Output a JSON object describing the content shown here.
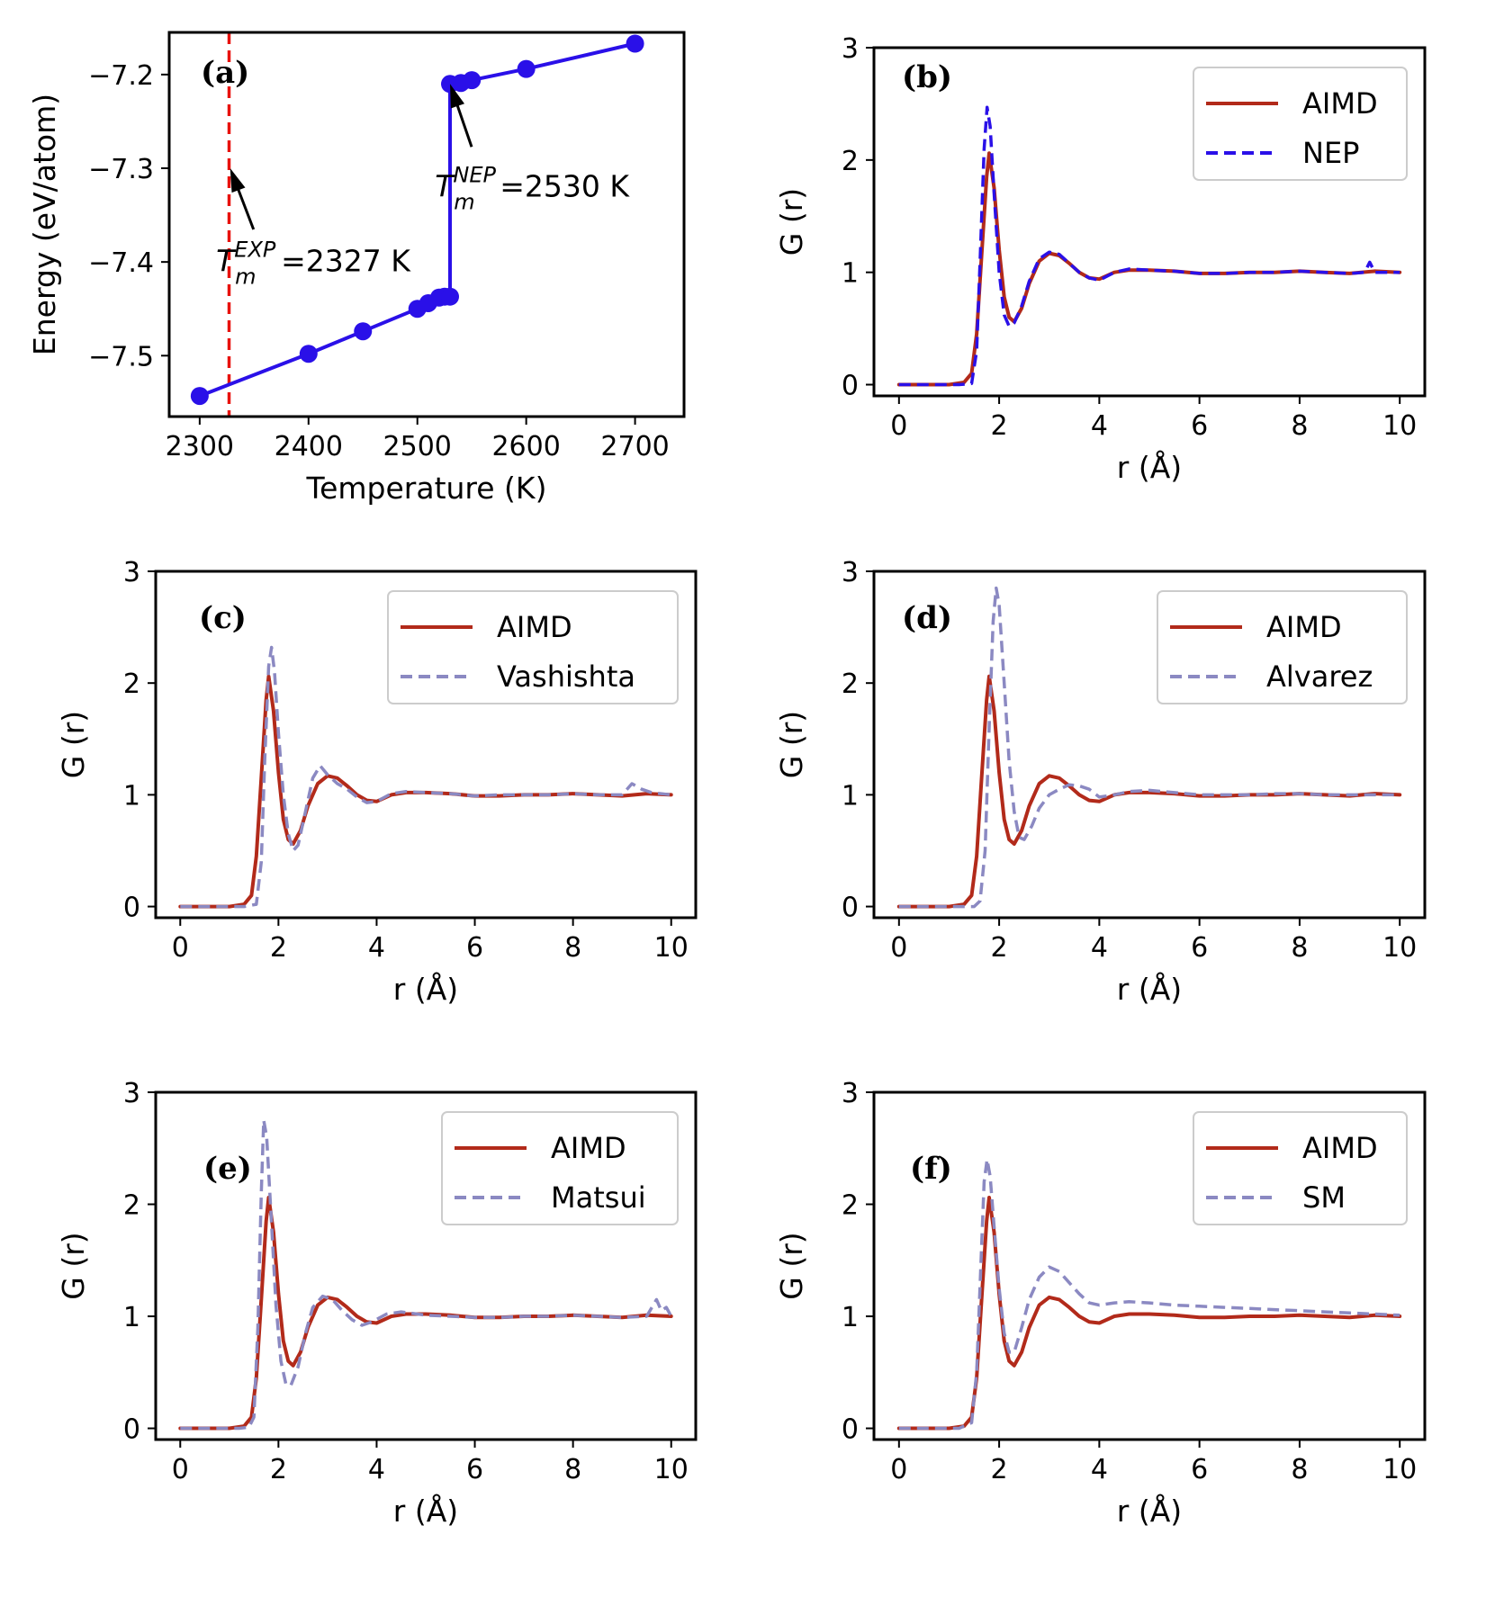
{
  "colors": {
    "aimd": "#b22a1a",
    "nep": "#2a10e8",
    "classical": "#8b89c2",
    "energy": "#2a10e8",
    "exp_line": "#e8120e"
  },
  "chart_data": [
    {
      "id": "a",
      "type": "line",
      "panel_label": "(a)",
      "xlabel": "Temperature (K)",
      "ylabel": "Energy (eV/atom)",
      "xlim": [
        2272,
        2745
      ],
      "ylim": [
        -7.565,
        -7.155
      ],
      "xticks": [
        2300,
        2400,
        2500,
        2600,
        2700
      ],
      "yticks": [
        -7.2,
        -7.3,
        -7.4,
        -7.5
      ],
      "xtick_labels": [
        "2300",
        "2400",
        "2500",
        "2600",
        "2700"
      ],
      "ytick_labels": [
        "−7.2",
        "−7.3",
        "−7.4",
        "−7.5"
      ],
      "series": [
        {
          "name": "Energy",
          "x": [
            2300,
            2400,
            2450,
            2500,
            2510,
            2520,
            2525,
            2530,
            2530,
            2540,
            2550,
            2600,
            2700
          ],
          "y": [
            -7.543,
            -7.498,
            -7.474,
            -7.45,
            -7.444,
            -7.438,
            -7.437,
            -7.437,
            -7.21,
            -7.209,
            -7.206,
            -7.194,
            -7.167
          ]
        }
      ],
      "vline_x": 2327,
      "annotations": [
        {
          "id": "exp",
          "prefix": "T",
          "sub": "m",
          "sup": "EXP",
          "rest": "=2327 K",
          "arrow_tip": [
            2328,
            -7.3
          ],
          "text_xy": [
            2330,
            -7.41
          ]
        },
        {
          "id": "nep",
          "prefix": "T",
          "sub": "m",
          "sup": "NEP",
          "rest": "=2530 K",
          "arrow_tip": [
            2530,
            -7.21
          ],
          "text_xy": [
            2531,
            -7.33
          ]
        }
      ]
    },
    {
      "id": "b",
      "type": "line",
      "panel_label": "(b)",
      "xlabel": "r (Å)",
      "ylabel": "G (r)",
      "xlim": [
        -0.5,
        10.5
      ],
      "ylim": [
        -0.1,
        3.0
      ],
      "xticks": [
        0,
        2,
        4,
        6,
        8,
        10
      ],
      "yticks": [
        0,
        1,
        2,
        3
      ],
      "xtick_labels": [
        "0",
        "2",
        "4",
        "6",
        "8",
        "10"
      ],
      "ytick_labels": [
        "0",
        "1",
        "2",
        "3"
      ],
      "legend": [
        "AIMD",
        "NEP"
      ],
      "series": [
        {
          "name": "AIMD",
          "style": "solid",
          "x": [
            0,
            1.0,
            1.3,
            1.45,
            1.55,
            1.65,
            1.75,
            1.8,
            1.9,
            2.0,
            2.1,
            2.2,
            2.3,
            2.45,
            2.6,
            2.8,
            3.0,
            3.2,
            3.4,
            3.6,
            3.8,
            4.0,
            4.3,
            4.6,
            5.0,
            5.5,
            6.0,
            6.5,
            7.0,
            7.5,
            8.0,
            8.5,
            9.0,
            9.5,
            10.0
          ],
          "values": [
            0,
            0,
            0.02,
            0.1,
            0.45,
            1.15,
            1.85,
            2.06,
            1.75,
            1.2,
            0.78,
            0.6,
            0.56,
            0.68,
            0.9,
            1.1,
            1.17,
            1.15,
            1.08,
            1.0,
            0.95,
            0.94,
            1.0,
            1.02,
            1.02,
            1.01,
            0.99,
            0.99,
            1.0,
            1.0,
            1.01,
            1.0,
            0.99,
            1.01,
            1.0
          ]
        },
        {
          "name": "NEP",
          "style": "dashed",
          "x": [
            0,
            1.2,
            1.45,
            1.55,
            1.62,
            1.7,
            1.76,
            1.82,
            1.9,
            2.0,
            2.1,
            2.2,
            2.3,
            2.45,
            2.6,
            2.8,
            3.0,
            3.2,
            3.4,
            3.6,
            3.8,
            4.0,
            4.3,
            4.6,
            5.0,
            5.5,
            6.0,
            6.5,
            7.0,
            7.5,
            8.0,
            8.5,
            9.0,
            9.3,
            9.4,
            9.5,
            10.0
          ],
          "values": [
            0,
            0,
            0.01,
            0.3,
            1.1,
            2.1,
            2.47,
            2.3,
            1.7,
            1.0,
            0.62,
            0.52,
            0.55,
            0.7,
            0.92,
            1.12,
            1.18,
            1.16,
            1.08,
            1.0,
            0.95,
            0.93,
            1.0,
            1.03,
            1.02,
            1.01,
            0.99,
            0.99,
            1.0,
            1.0,
            1.01,
            1.0,
            0.99,
            1.0,
            1.09,
            1.0,
            1.0
          ]
        }
      ]
    },
    {
      "id": "c",
      "type": "line",
      "panel_label": "(c)",
      "xlabel": "r (Å)",
      "ylabel": "G (r)",
      "xlim": [
        -0.5,
        10.5
      ],
      "ylim": [
        -0.1,
        3.0
      ],
      "xticks": [
        0,
        2,
        4,
        6,
        8,
        10
      ],
      "yticks": [
        0,
        1,
        2,
        3
      ],
      "xtick_labels": [
        "0",
        "2",
        "4",
        "6",
        "8",
        "10"
      ],
      "ytick_labels": [
        "0",
        "1",
        "2",
        "3"
      ],
      "legend": [
        "AIMD",
        "Vashishta"
      ],
      "series": [
        {
          "name": "AIMD",
          "style": "solid",
          "x": [
            0,
            1.0,
            1.3,
            1.45,
            1.55,
            1.65,
            1.75,
            1.8,
            1.9,
            2.0,
            2.1,
            2.2,
            2.3,
            2.45,
            2.6,
            2.8,
            3.0,
            3.2,
            3.4,
            3.6,
            3.8,
            4.0,
            4.3,
            4.6,
            5.0,
            5.5,
            6.0,
            6.5,
            7.0,
            7.5,
            8.0,
            8.5,
            9.0,
            9.5,
            10.0
          ],
          "values": [
            0,
            0,
            0.02,
            0.1,
            0.45,
            1.15,
            1.85,
            2.06,
            1.75,
            1.2,
            0.78,
            0.6,
            0.56,
            0.68,
            0.9,
            1.1,
            1.17,
            1.15,
            1.08,
            1.0,
            0.95,
            0.94,
            1.0,
            1.02,
            1.02,
            1.01,
            0.99,
            0.99,
            1.0,
            1.0,
            1.01,
            1.0,
            0.99,
            1.01,
            1.0
          ]
        },
        {
          "name": "Vashishta",
          "style": "dashed",
          "x": [
            0,
            1.3,
            1.55,
            1.65,
            1.72,
            1.8,
            1.86,
            1.92,
            2.0,
            2.1,
            2.2,
            2.3,
            2.4,
            2.55,
            2.7,
            2.85,
            3.0,
            3.2,
            3.4,
            3.6,
            3.8,
            4.0,
            4.3,
            4.6,
            5.0,
            5.5,
            6.0,
            6.5,
            7.0,
            7.5,
            8.0,
            8.5,
            9.0,
            9.2,
            9.4,
            9.6,
            10.0
          ],
          "values": [
            0,
            0,
            0.02,
            0.4,
            1.3,
            2.15,
            2.32,
            2.1,
            1.55,
            1.0,
            0.65,
            0.5,
            0.55,
            0.85,
            1.15,
            1.26,
            1.18,
            1.1,
            1.05,
            0.98,
            0.93,
            0.94,
            1.01,
            1.03,
            1.02,
            1.01,
            0.99,
            1.0,
            1.0,
            1.0,
            1.01,
            1.0,
            1.0,
            1.1,
            1.05,
            1.02,
            1.0
          ]
        }
      ]
    },
    {
      "id": "d",
      "type": "line",
      "panel_label": "(d)",
      "xlabel": "r (Å)",
      "ylabel": "G (r)",
      "xlim": [
        -0.5,
        10.5
      ],
      "ylim": [
        -0.1,
        3.0
      ],
      "xticks": [
        0,
        2,
        4,
        6,
        8,
        10
      ],
      "yticks": [
        0,
        1,
        2,
        3
      ],
      "xtick_labels": [
        "0",
        "2",
        "4",
        "6",
        "8",
        "10"
      ],
      "ytick_labels": [
        "0",
        "1",
        "2",
        "3"
      ],
      "legend": [
        "AIMD",
        "Alvarez"
      ],
      "series": [
        {
          "name": "AIMD",
          "style": "solid",
          "x": [
            0,
            1.0,
            1.3,
            1.45,
            1.55,
            1.65,
            1.75,
            1.8,
            1.9,
            2.0,
            2.1,
            2.2,
            2.3,
            2.45,
            2.6,
            2.8,
            3.0,
            3.2,
            3.4,
            3.6,
            3.8,
            4.0,
            4.3,
            4.6,
            5.0,
            5.5,
            6.0,
            6.5,
            7.0,
            7.5,
            8.0,
            8.5,
            9.0,
            9.5,
            10.0
          ],
          "values": [
            0,
            0,
            0.02,
            0.1,
            0.45,
            1.15,
            1.85,
            2.06,
            1.75,
            1.2,
            0.78,
            0.6,
            0.56,
            0.68,
            0.9,
            1.1,
            1.17,
            1.15,
            1.08,
            1.0,
            0.95,
            0.94,
            1.0,
            1.02,
            1.02,
            1.01,
            0.99,
            0.99,
            1.0,
            1.0,
            1.01,
            1.0,
            0.99,
            1.01,
            1.0
          ]
        },
        {
          "name": "Alvarez",
          "style": "dashed",
          "x": [
            0,
            1.5,
            1.62,
            1.72,
            1.8,
            1.88,
            1.94,
            2.0,
            2.1,
            2.2,
            2.3,
            2.4,
            2.5,
            2.65,
            2.8,
            3.0,
            3.2,
            3.4,
            3.6,
            3.8,
            4.0,
            4.3,
            4.6,
            5.0,
            5.5,
            6.0,
            6.5,
            7.0,
            7.5,
            8.0,
            8.5,
            9.0,
            9.5,
            10.0
          ],
          "values": [
            0,
            0,
            0.05,
            0.5,
            1.6,
            2.55,
            2.85,
            2.7,
            2.0,
            1.3,
            0.85,
            0.62,
            0.6,
            0.72,
            0.88,
            1.0,
            1.05,
            1.09,
            1.08,
            1.05,
            0.98,
            1.0,
            1.03,
            1.04,
            1.02,
            1.0,
            1.0,
            1.0,
            1.01,
            1.01,
            1.0,
            1.0,
            1.0,
            1.0
          ]
        }
      ]
    },
    {
      "id": "e",
      "type": "line",
      "panel_label": "(e)",
      "xlabel": "r (Å)",
      "ylabel": "G (r)",
      "xlim": [
        -0.5,
        10.5
      ],
      "ylim": [
        -0.1,
        3.0
      ],
      "xticks": [
        0,
        2,
        4,
        6,
        8,
        10
      ],
      "yticks": [
        0,
        1,
        2,
        3
      ],
      "xtick_labels": [
        "0",
        "2",
        "4",
        "6",
        "8",
        "10"
      ],
      "ytick_labels": [
        "0",
        "1",
        "2",
        "3"
      ],
      "legend": [
        "AIMD",
        "Matsui"
      ],
      "series": [
        {
          "name": "AIMD",
          "style": "solid",
          "x": [
            0,
            1.0,
            1.3,
            1.45,
            1.55,
            1.65,
            1.75,
            1.8,
            1.9,
            2.0,
            2.1,
            2.2,
            2.3,
            2.45,
            2.6,
            2.8,
            3.0,
            3.2,
            3.4,
            3.6,
            3.8,
            4.0,
            4.3,
            4.6,
            5.0,
            5.5,
            6.0,
            6.5,
            7.0,
            7.5,
            8.0,
            8.5,
            9.0,
            9.5,
            10.0
          ],
          "values": [
            0,
            0,
            0.02,
            0.1,
            0.45,
            1.15,
            1.85,
            2.06,
            1.75,
            1.2,
            0.78,
            0.6,
            0.56,
            0.68,
            0.9,
            1.1,
            1.17,
            1.15,
            1.08,
            1.0,
            0.95,
            0.94,
            1.0,
            1.02,
            1.02,
            1.01,
            0.99,
            0.99,
            1.0,
            1.0,
            1.01,
            1.0,
            0.99,
            1.01,
            1.0
          ]
        },
        {
          "name": "Matsui",
          "style": "dashed",
          "x": [
            0,
            1.2,
            1.4,
            1.5,
            1.58,
            1.65,
            1.7,
            1.76,
            1.85,
            1.95,
            2.05,
            2.15,
            2.25,
            2.4,
            2.55,
            2.7,
            2.9,
            3.1,
            3.3,
            3.5,
            3.7,
            3.9,
            4.2,
            4.5,
            5.0,
            5.5,
            6.0,
            6.5,
            7.0,
            7.5,
            8.0,
            8.5,
            9.0,
            9.5,
            9.7,
            9.8,
            9.9,
            10.0
          ],
          "values": [
            0,
            0,
            0.01,
            0.1,
            0.9,
            2.1,
            2.75,
            2.6,
            1.9,
            1.1,
            0.6,
            0.4,
            0.38,
            0.55,
            0.85,
            1.08,
            1.18,
            1.15,
            1.05,
            0.97,
            0.92,
            0.95,
            1.02,
            1.04,
            1.01,
            1.0,
            0.99,
            0.99,
            1.0,
            1.0,
            1.01,
            1.0,
            0.99,
            1.0,
            1.15,
            1.05,
            1.08,
            1.0
          ]
        }
      ]
    },
    {
      "id": "f",
      "type": "line",
      "panel_label": "(f)",
      "xlabel": "r (Å)",
      "ylabel": "G (r)",
      "xlim": [
        -0.5,
        10.5
      ],
      "ylim": [
        -0.1,
        3.0
      ],
      "xticks": [
        0,
        2,
        4,
        6,
        8,
        10
      ],
      "yticks": [
        0,
        1,
        2,
        3
      ],
      "xtick_labels": [
        "0",
        "2",
        "4",
        "6",
        "8",
        "10"
      ],
      "ytick_labels": [
        "0",
        "1",
        "2",
        "3"
      ],
      "legend": [
        "AIMD",
        "SM"
      ],
      "series": [
        {
          "name": "AIMD",
          "style": "solid",
          "x": [
            0,
            1.0,
            1.3,
            1.45,
            1.55,
            1.65,
            1.75,
            1.8,
            1.9,
            2.0,
            2.1,
            2.2,
            2.3,
            2.45,
            2.6,
            2.8,
            3.0,
            3.2,
            3.4,
            3.6,
            3.8,
            4.0,
            4.3,
            4.6,
            5.0,
            5.5,
            6.0,
            6.5,
            7.0,
            7.5,
            8.0,
            8.5,
            9.0,
            9.5,
            10.0
          ],
          "values": [
            0,
            0,
            0.02,
            0.1,
            0.45,
            1.15,
            1.85,
            2.06,
            1.75,
            1.2,
            0.78,
            0.6,
            0.56,
            0.68,
            0.9,
            1.1,
            1.17,
            1.15,
            1.08,
            1.0,
            0.95,
            0.94,
            1.0,
            1.02,
            1.02,
            1.01,
            0.99,
            0.99,
            1.0,
            1.0,
            1.01,
            1.0,
            0.99,
            1.01,
            1.0
          ]
        },
        {
          "name": "SM",
          "style": "dashed",
          "x": [
            0,
            1.2,
            1.45,
            1.55,
            1.63,
            1.7,
            1.76,
            1.82,
            1.9,
            2.0,
            2.1,
            2.2,
            2.3,
            2.45,
            2.6,
            2.8,
            3.0,
            3.2,
            3.4,
            3.6,
            3.8,
            4.0,
            4.3,
            4.6,
            5.0,
            5.5,
            6.0,
            6.5,
            7.0,
            7.5,
            8.0,
            8.5,
            9.0,
            9.5,
            10.0
          ],
          "values": [
            0,
            0,
            0.05,
            0.5,
            1.4,
            2.2,
            2.4,
            2.25,
            1.8,
            1.25,
            0.85,
            0.68,
            0.68,
            0.9,
            1.15,
            1.35,
            1.44,
            1.4,
            1.3,
            1.2,
            1.12,
            1.1,
            1.12,
            1.13,
            1.12,
            1.1,
            1.09,
            1.08,
            1.07,
            1.06,
            1.05,
            1.04,
            1.03,
            1.02,
            1.01
          ]
        }
      ]
    }
  ]
}
